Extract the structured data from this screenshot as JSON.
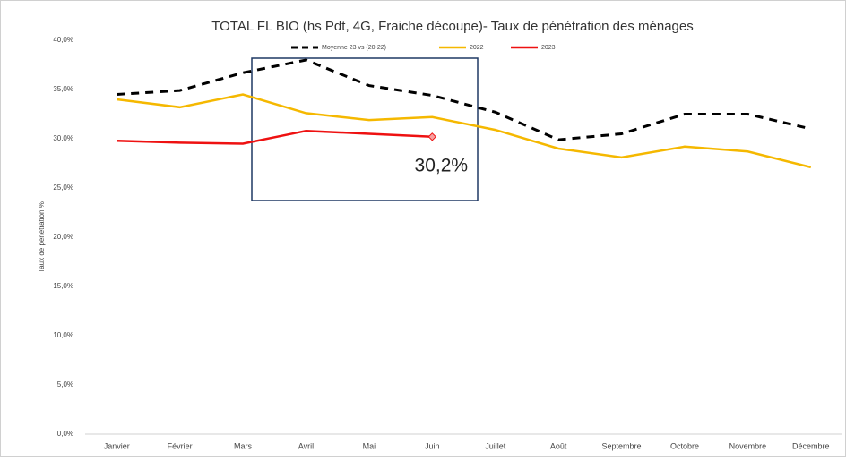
{
  "chart_data": {
    "type": "line",
    "title": "TOTAL FL BIO (hs Pdt, 4G, Fraiche découpe)- Taux de pénétration des ménages",
    "y_label": "Taux de pénétration %",
    "categories": [
      "Janvier",
      "Février",
      "Mars",
      "Avril",
      "Mai",
      "Juin",
      "Juillet",
      "Août",
      "Septembre",
      "Octobre",
      "Novembre",
      "Décembre"
    ],
    "series": [
      {
        "name": "Moyenne 23 vs (20-22)",
        "color": "#000000",
        "dash": true,
        "values": [
          34.5,
          34.9,
          36.7,
          38.0,
          35.4,
          34.4,
          32.7,
          29.9,
          30.5,
          32.5,
          32.5,
          31.0
        ]
      },
      {
        "name": "2022",
        "color": "#f5b800",
        "dash": false,
        "values": [
          34.0,
          33.2,
          34.5,
          32.6,
          31.9,
          32.2,
          30.9,
          29.0,
          28.1,
          29.2,
          28.7,
          27.1
        ]
      },
      {
        "name": "2023",
        "color": "#ee1111",
        "dash": false,
        "values": [
          29.8,
          29.6,
          29.5,
          30.8,
          30.5,
          30.2,
          null,
          null,
          null,
          null,
          null,
          null
        ],
        "value_labels": [
          null,
          null,
          null,
          null,
          null,
          "30,2%",
          null,
          null,
          null,
          null,
          null,
          null
        ]
      }
    ],
    "ylim": [
      0,
      40
    ],
    "yticks": [
      {
        "value": 0,
        "label": "0,0%"
      },
      {
        "value": 5,
        "label": "5,0%"
      },
      {
        "value": 10,
        "label": "10,0%"
      },
      {
        "value": 15,
        "label": "15,0%"
      },
      {
        "value": 20,
        "label": "20,0%"
      },
      {
        "value": 25,
        "label": "25,0%"
      },
      {
        "value": 30,
        "label": "30,0%"
      },
      {
        "value": 35,
        "label": "35,0%"
      },
      {
        "value": 40,
        "label": "40,0%"
      }
    ],
    "grid": false
  }
}
